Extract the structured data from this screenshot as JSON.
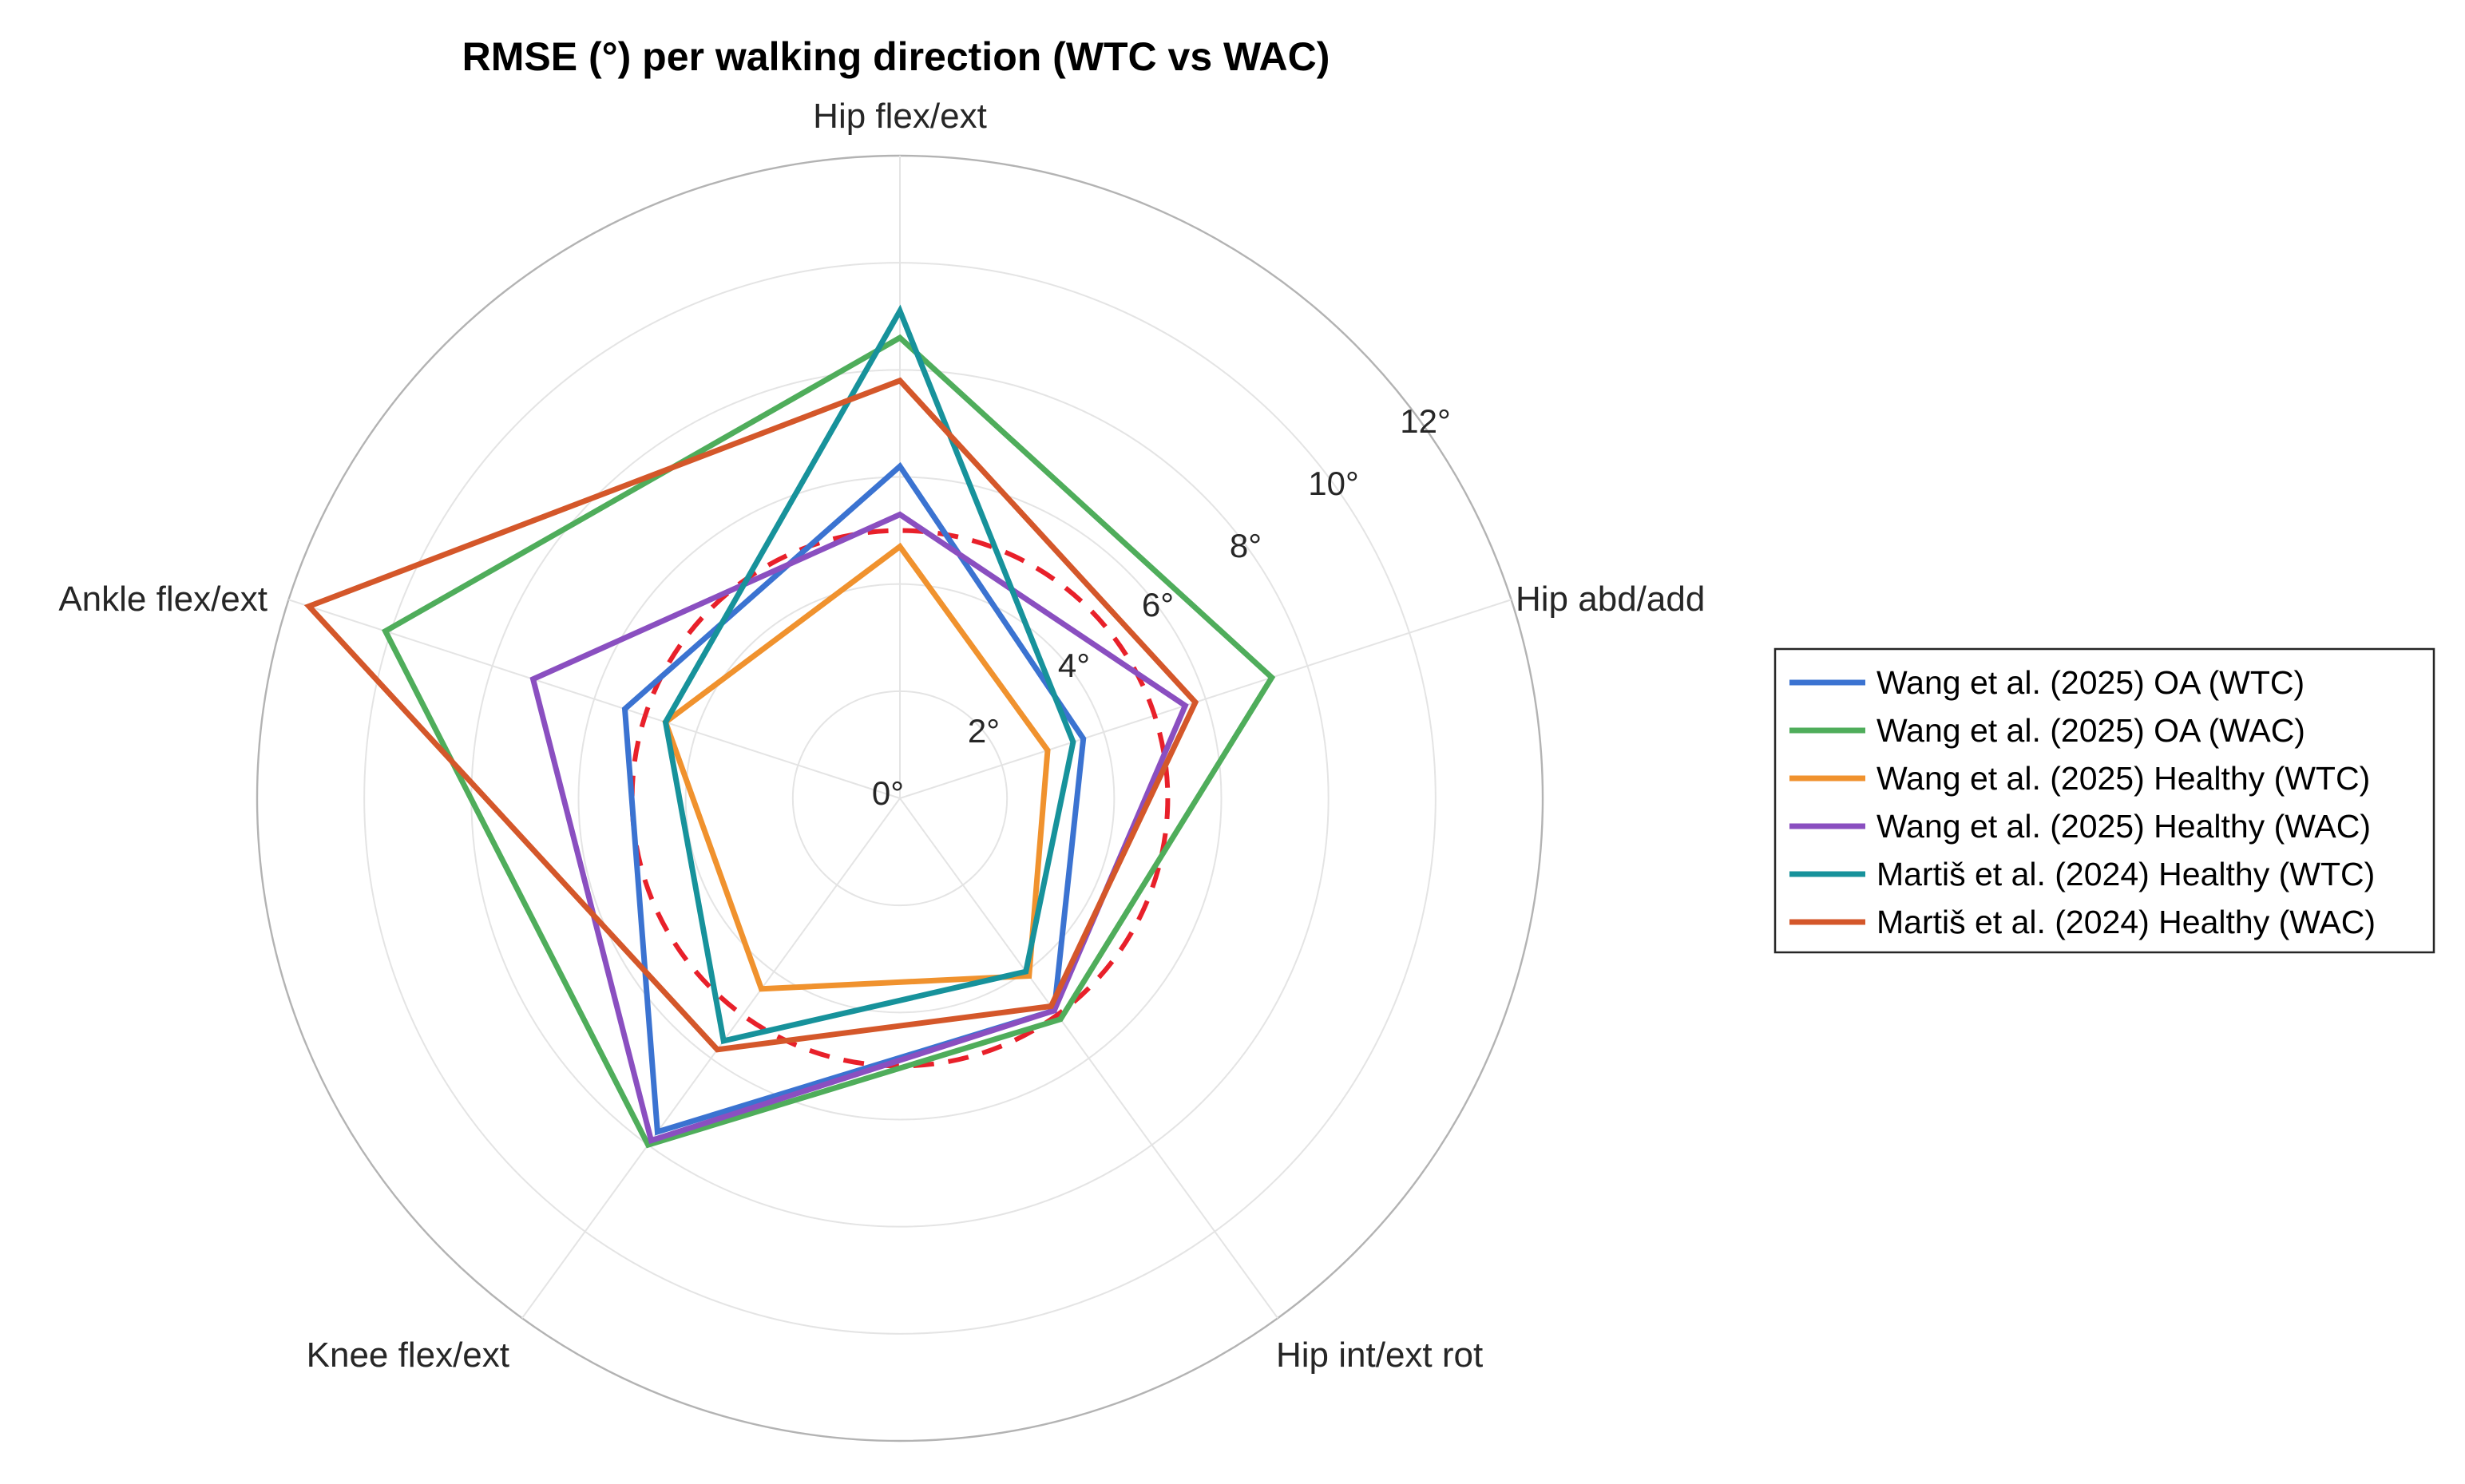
{
  "chart_data": {
    "type": "radar",
    "title": "RMSE (°) per walking direction (WTC vs WAC)",
    "axes": [
      "Hip flex/ext",
      "Hip abd/add",
      "Hip int/ext rot",
      "Knee flex/ext",
      "Ankle flex/ext"
    ],
    "r_range": [
      0,
      12
    ],
    "r_ticks": [
      0,
      2,
      4,
      6,
      8,
      10,
      12
    ],
    "r_tick_labels": [
      "0°",
      "2°",
      "4°",
      "6°",
      "8°",
      "10°",
      "12°"
    ],
    "grid": true,
    "legend_position": "right",
    "series": [
      {
        "name": "Wang et al. (2025) OA (WTC)",
        "color": "#3b73d1",
        "values": [
          6.2,
          3.6,
          4.9,
          7.7,
          5.4
        ],
        "style": "solid"
      },
      {
        "name": "Wang et al. (2025) OA (WAC)",
        "color": "#4fad5b",
        "values": [
          8.6,
          7.3,
          5.1,
          8.0,
          10.1
        ],
        "style": "solid"
      },
      {
        "name": "Wang et al. (2025) Healthy (WTC)",
        "color": "#f0922e",
        "values": [
          4.7,
          2.9,
          4.1,
          4.4,
          4.6
        ],
        "style": "solid"
      },
      {
        "name": "Wang et al. (2025) Healthy (WAC)",
        "color": "#8a4fc0",
        "values": [
          5.3,
          5.6,
          4.9,
          7.9,
          7.2
        ],
        "style": "solid"
      },
      {
        "name": "Martiš et al. (2024) Healthy (WTC)",
        "color": "#17929b",
        "values": [
          9.1,
          3.4,
          4.0,
          5.6,
          4.6
        ],
        "style": "solid"
      },
      {
        "name": "Martiš et al. (2024) Healthy (WAC)",
        "color": "#d4572a",
        "values": [
          7.8,
          5.8,
          4.8,
          5.8,
          11.6
        ],
        "style": "solid"
      }
    ],
    "reference": {
      "name": "",
      "color": "#e8202a",
      "value": 5.0,
      "style": "dashed"
    }
  }
}
